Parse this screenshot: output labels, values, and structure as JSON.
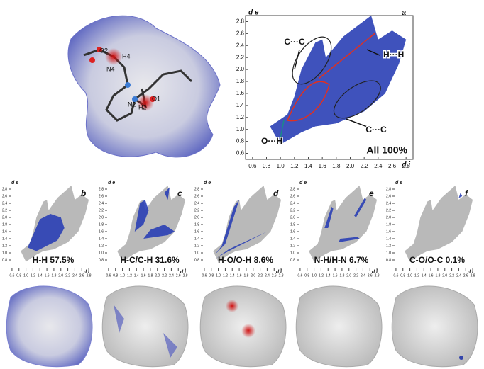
{
  "molecule_labels": [
    "O2",
    "H4",
    "N4",
    "N2",
    "H2",
    "O1"
  ],
  "chart_data": [
    {
      "type": "fingerprint",
      "label": "a",
      "y_label": "d e",
      "x_label": "d i",
      "caption": "All 100%",
      "annotations": [
        "C···C",
        "H···H",
        "C···C",
        "O···H"
      ],
      "xlim": [
        0.5,
        2.9
      ],
      "ylim": [
        0.5,
        2.9
      ],
      "xticks": [
        0.6,
        0.8,
        {
          "value": 1,
          "label": "1.0"
        },
        1.2,
        1.4,
        1.6,
        1.8,
        {
          "value": 2,
          "label": "2.0"
        },
        2.2,
        2.4,
        2.6,
        2.8
      ],
      "yticks": [
        0.6,
        0.8,
        {
          "value": 1,
          "label": "1.0"
        },
        1.2,
        1.4,
        1.6,
        1.8,
        {
          "value": 2,
          "label": "2.0"
        },
        2.2,
        2.4,
        2.6,
        2.8
      ]
    },
    {
      "type": "fingerprint",
      "label": "b",
      "y_label": "d e",
      "x_label": "d i",
      "caption": "H-H 57.5%",
      "xlim": [
        0.5,
        2.9
      ],
      "ylim": [
        0.5,
        2.9
      ],
      "xticks": [
        0.6,
        0.8,
        {
          "value": 1,
          "label": "1.0"
        },
        1.2,
        1.4,
        1.6,
        1.8,
        {
          "value": 2,
          "label": "2.0"
        },
        2.2,
        2.4,
        2.6,
        2.8
      ],
      "yticks": [
        0.8,
        {
          "value": 1,
          "label": "1.0"
        },
        1.2,
        1.4,
        1.6,
        1.8,
        {
          "value": 2,
          "label": "2.0"
        },
        2.2,
        2.4,
        2.6,
        2.8
      ]
    },
    {
      "type": "fingerprint",
      "label": "c",
      "y_label": "d e",
      "x_label": "d i",
      "caption": "H-C/C-H 31.6%",
      "xlim": [
        0.5,
        2.9
      ],
      "ylim": [
        0.5,
        2.9
      ],
      "xticks": [
        0.6,
        0.8,
        {
          "value": 1,
          "label": "1.0"
        },
        1.2,
        1.4,
        1.6,
        1.8,
        {
          "value": 2,
          "label": "2.0"
        },
        2.2,
        2.4,
        2.6,
        2.8
      ],
      "yticks": [
        0.8,
        {
          "value": 1,
          "label": "1.0"
        },
        1.2,
        1.4,
        1.6,
        1.8,
        {
          "value": 2,
          "label": "2.0"
        },
        2.2,
        2.4,
        2.6,
        2.8
      ]
    },
    {
      "type": "fingerprint",
      "label": "d",
      "y_label": "d e",
      "x_label": "d i",
      "caption": "H-O/O-H 8.6%",
      "xlim": [
        0.5,
        2.9
      ],
      "ylim": [
        0.5,
        2.9
      ],
      "xticks": [
        0.6,
        0.8,
        {
          "value": 1,
          "label": "1.0"
        },
        1.2,
        1.4,
        1.6,
        1.8,
        {
          "value": 2,
          "label": "2.0"
        },
        2.2,
        2.4,
        2.6,
        2.8
      ],
      "yticks": [
        0.8,
        {
          "value": 1,
          "label": "1.0"
        },
        1.2,
        1.4,
        1.6,
        1.8,
        {
          "value": 2,
          "label": "2.0"
        },
        2.2,
        2.4,
        2.6,
        2.8
      ]
    },
    {
      "type": "fingerprint",
      "label": "e",
      "y_label": "d e",
      "x_label": "d i",
      "caption": "N-H/H-N 6.7%",
      "xlim": [
        0.5,
        2.9
      ],
      "ylim": [
        0.5,
        2.9
      ],
      "xticks": [
        0.6,
        0.8,
        {
          "value": 1,
          "label": "1.0"
        },
        1.2,
        1.4,
        1.6,
        1.8,
        {
          "value": 2,
          "label": "2.0"
        },
        2.2,
        2.4,
        2.6,
        2.8
      ],
      "yticks": [
        0.8,
        {
          "value": 1,
          "label": "1.0"
        },
        1.2,
        1.4,
        1.6,
        1.8,
        {
          "value": 2,
          "label": "2.0"
        },
        2.2,
        2.4,
        2.6,
        2.8
      ]
    },
    {
      "type": "fingerprint",
      "label": "f",
      "y_label": "d e",
      "x_label": "d i",
      "caption": "C-O/O-C 0.1%",
      "xlim": [
        0.5,
        2.9
      ],
      "ylim": [
        0.5,
        2.9
      ],
      "xticks": [
        0.6,
        0.8,
        {
          "value": 1,
          "label": "1.0"
        },
        1.2,
        1.4,
        1.6,
        1.8,
        {
          "value": 2,
          "label": "2.0"
        },
        2.2,
        2.4,
        2.6,
        2.8
      ],
      "yticks": [
        0.8,
        {
          "value": 1,
          "label": "1.0"
        },
        1.2,
        1.4,
        1.6,
        1.8,
        {
          "value": 2,
          "label": "2.0"
        },
        2.2,
        2.4,
        2.6,
        2.8
      ]
    }
  ]
}
